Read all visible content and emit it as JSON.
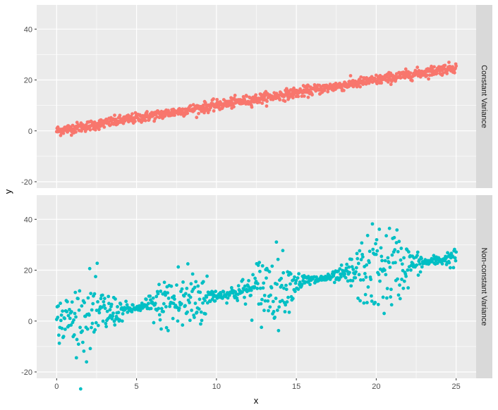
{
  "chart_data": {
    "type": "scatter",
    "xlabel": "x",
    "ylabel": "y",
    "xlim": [
      -1.25,
      26.25
    ],
    "ylim": [
      -22.5,
      49.5
    ],
    "x_ticks": [
      0,
      5,
      10,
      15,
      20,
      25
    ],
    "y_ticks": [
      -20,
      0,
      20,
      40
    ],
    "panels": [
      {
        "label": "Constant Variance",
        "color": "#F8766D",
        "trend": {
          "intercept": 0,
          "slope": 1.0
        },
        "noise": "constant, sd approx 1",
        "x_range": [
          0,
          25
        ],
        "n_points": 1000
      },
      {
        "label": "Non-constant Variance",
        "color": "#00BFC4",
        "trend": {
          "intercept": 0,
          "slope": 1.0
        },
        "noise": "periodic: sd near 0 at x = 5, 10, 15, 17.5, 24; largest near x = 2, 8, 13, 20, 21",
        "x_range": [
          0,
          25
        ],
        "n_points": 750
      }
    ],
    "grid": true,
    "legend": "none"
  }
}
